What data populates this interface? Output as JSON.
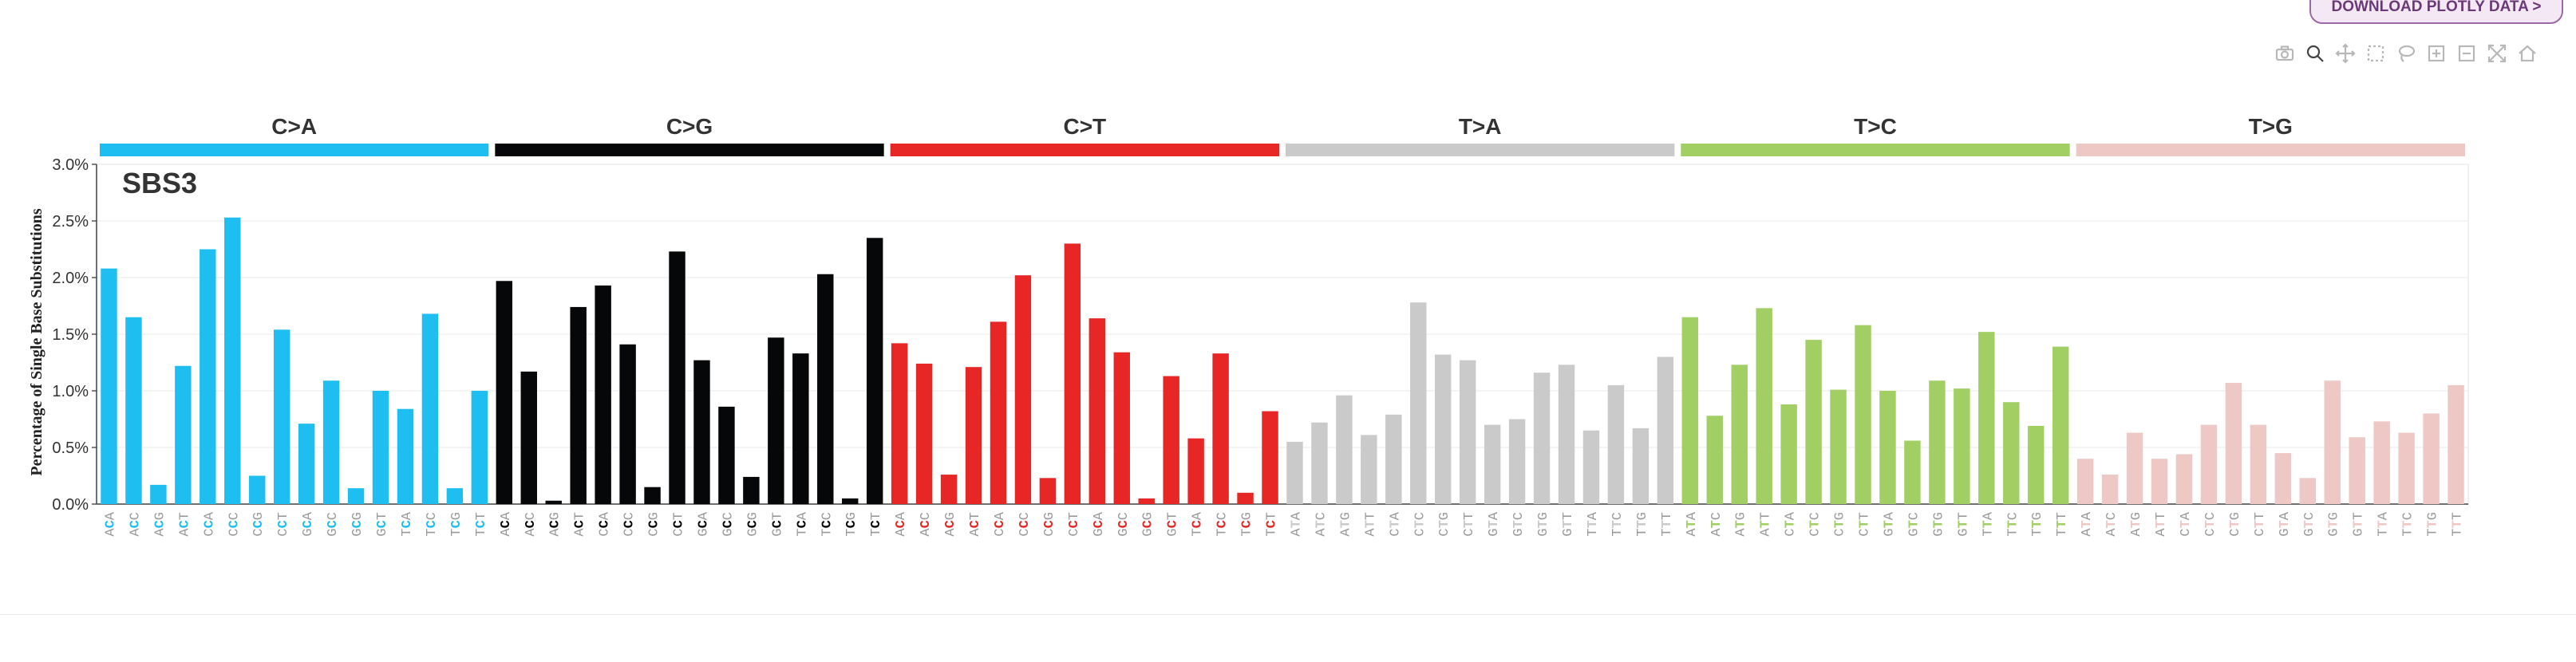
{
  "download_label": "DOWNLOAD PLOTLY DATA >",
  "modebar": [
    {
      "name": "camera-icon",
      "active": false
    },
    {
      "name": "zoom-icon",
      "active": true
    },
    {
      "name": "pan-icon",
      "active": false
    },
    {
      "name": "box-select-icon",
      "active": false
    },
    {
      "name": "lasso-select-icon",
      "active": false
    },
    {
      "name": "zoom-in-icon",
      "active": false
    },
    {
      "name": "zoom-out-icon",
      "active": false
    },
    {
      "name": "autoscale-icon",
      "active": false
    },
    {
      "name": "reset-axes-icon",
      "active": false
    }
  ],
  "chart_data": {
    "type": "bar",
    "title": "SBS3",
    "ylabel": "Percentage of Single Base Substitutions",
    "ylim": [
      0,
      3.0
    ],
    "yticks": [
      "0.0%",
      "0.5%",
      "1.0%",
      "1.5%",
      "2.0%",
      "2.5%",
      "3.0%"
    ],
    "groups": [
      {
        "name": "C>A",
        "color": "#1ebff0",
        "categories": [
          "ACA",
          "ACC",
          "ACG",
          "ACT",
          "CCA",
          "CCC",
          "CCG",
          "CCT",
          "GCA",
          "GCC",
          "GCG",
          "GCT",
          "TCA",
          "TCC",
          "TCG",
          "TCT"
        ],
        "values": [
          2.08,
          1.65,
          0.17,
          1.22,
          2.25,
          2.53,
          0.25,
          1.54,
          0.71,
          1.09,
          0.14,
          1.0,
          0.84,
          1.68,
          0.14,
          1.0
        ]
      },
      {
        "name": "C>G",
        "color": "#050708",
        "categories": [
          "ACA",
          "ACC",
          "ACG",
          "ACT",
          "CCA",
          "CCC",
          "CCG",
          "CCT",
          "GCA",
          "GCC",
          "GCG",
          "GCT",
          "TCA",
          "TCC",
          "TCG",
          "TCT"
        ],
        "values": [
          1.97,
          1.17,
          0.03,
          1.74,
          1.93,
          1.41,
          0.15,
          2.23,
          1.27,
          0.86,
          0.24,
          1.47,
          1.33,
          2.03,
          0.05,
          2.35
        ]
      },
      {
        "name": "C>T",
        "color": "#e62725",
        "categories": [
          "ACA",
          "ACC",
          "ACG",
          "ACT",
          "CCA",
          "CCC",
          "CCG",
          "CCT",
          "GCA",
          "GCC",
          "GCG",
          "GCT",
          "TCA",
          "TCC",
          "TCG",
          "TCT"
        ],
        "values": [
          1.42,
          1.24,
          0.26,
          1.21,
          1.61,
          2.02,
          0.23,
          2.3,
          1.64,
          1.34,
          0.05,
          1.13,
          0.58,
          1.33,
          0.1,
          0.82
        ]
      },
      {
        "name": "T>A",
        "color": "#cbcacb",
        "categories": [
          "ATA",
          "ATC",
          "ATG",
          "ATT",
          "CTA",
          "CTC",
          "CTG",
          "CTT",
          "GTA",
          "GTC",
          "GTG",
          "GTT",
          "TTA",
          "TTC",
          "TTG",
          "TTT"
        ],
        "values": [
          0.55,
          0.72,
          0.96,
          0.61,
          0.79,
          1.78,
          1.32,
          1.27,
          0.7,
          0.75,
          1.16,
          1.23,
          0.65,
          1.05,
          0.67,
          1.3
        ]
      },
      {
        "name": "T>C",
        "color": "#a1cf64",
        "categories": [
          "ATA",
          "ATC",
          "ATG",
          "ATT",
          "CTA",
          "CTC",
          "CTG",
          "CTT",
          "GTA",
          "GTC",
          "GTG",
          "GTT",
          "TTA",
          "TTC",
          "TTG",
          "TTT"
        ],
        "values": [
          1.65,
          0.78,
          1.23,
          1.73,
          0.88,
          1.45,
          1.01,
          1.58,
          1.0,
          0.56,
          1.09,
          1.02,
          1.52,
          0.9,
          0.69,
          1.39
        ]
      },
      {
        "name": "T>G",
        "color": "#edc8c5",
        "categories": [
          "ATA",
          "ATC",
          "ATG",
          "ATT",
          "CTA",
          "CTC",
          "CTG",
          "CTT",
          "GTA",
          "GTC",
          "GTG",
          "GTT",
          "TTA",
          "TTC",
          "TTG",
          "TTT"
        ],
        "values": [
          0.4,
          0.26,
          0.63,
          0.4,
          0.44,
          0.7,
          1.07,
          0.7,
          0.45,
          0.23,
          1.09,
          0.59,
          0.73,
          0.63,
          0.8,
          1.05
        ]
      }
    ]
  }
}
